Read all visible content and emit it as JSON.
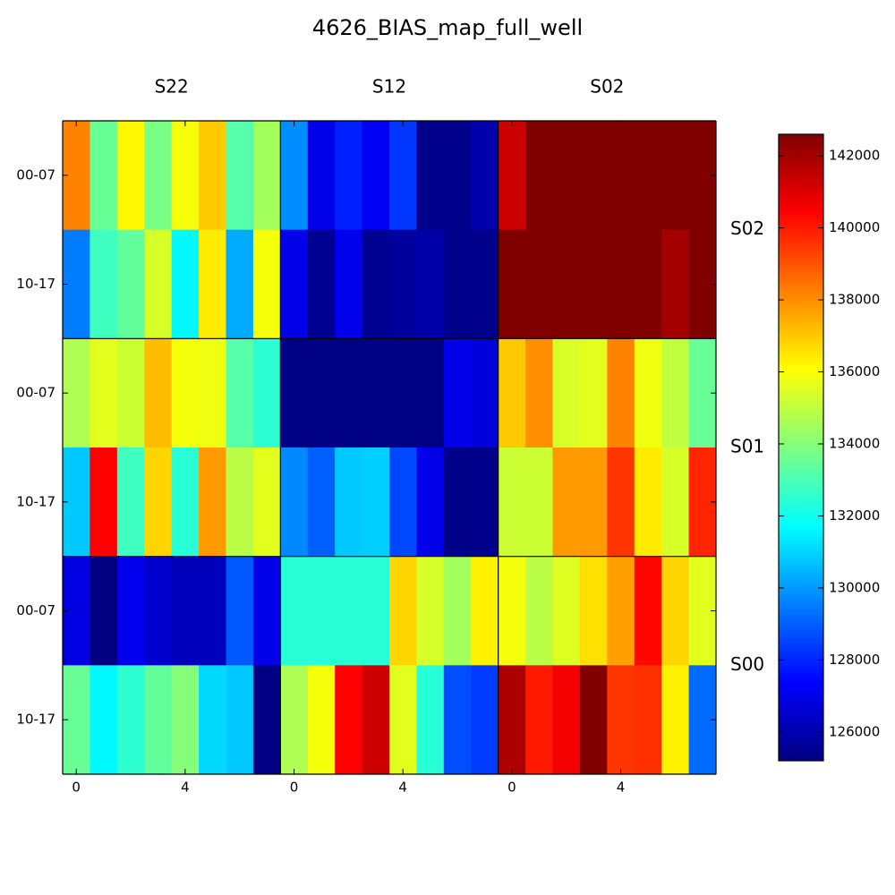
{
  "chart_data": {
    "type": "heatmap",
    "title": "4626_BIAS_map_full_well",
    "colormap": "jet",
    "column_labels": [
      "S22",
      "S12",
      "S02"
    ],
    "row_labels": [
      "S02",
      "S01",
      "S00"
    ],
    "xlim": [
      -0.5,
      7.5
    ],
    "xticks": [
      0,
      4
    ],
    "ylim": [
      -0.5,
      1.5
    ],
    "yticks": [
      {
        "value": 0,
        "label": "00-07"
      },
      {
        "value": 1,
        "label": "10-17"
      }
    ],
    "colorbar": {
      "lim": [
        125200,
        142600
      ],
      "ticks": [
        126000,
        128000,
        130000,
        132000,
        134000,
        136000,
        138000,
        140000,
        142000
      ]
    },
    "values": [
      [
        138200,
        133500,
        136200,
        133800,
        135900,
        137000,
        133200,
        134500,
        129800,
        127000,
        127900,
        127200,
        128300,
        125400,
        125400,
        126000,
        141300,
        142600,
        142600,
        142600,
        142600,
        142600,
        142600,
        142600
      ],
      [
        129500,
        132800,
        133400,
        135400,
        131600,
        136400,
        130300,
        135900,
        127000,
        125500,
        127100,
        125500,
        125700,
        125900,
        125400,
        125400,
        142600,
        142600,
        142600,
        142600,
        142600,
        142600,
        142000,
        142600
      ],
      [
        134700,
        135600,
        135200,
        137200,
        135900,
        135800,
        133200,
        132500,
        125300,
        125300,
        125300,
        125300,
        125300,
        125300,
        127000,
        126800,
        137000,
        138000,
        135400,
        135600,
        138200,
        135800,
        135000,
        133500
      ],
      [
        130800,
        140400,
        132800,
        136800,
        132400,
        137800,
        134900,
        135600,
        129700,
        129000,
        130800,
        130900,
        128600,
        127000,
        125400,
        125400,
        135200,
        135200,
        137800,
        137800,
        139500,
        136400,
        135400,
        139800
      ],
      [
        126900,
        125200,
        127100,
        126500,
        126200,
        126200,
        128900,
        127000,
        132400,
        132400,
        132400,
        132400,
        136800,
        135400,
        134500,
        136300,
        135900,
        134900,
        135500,
        136600,
        137700,
        140300,
        136800,
        135600
      ],
      [
        133500,
        131600,
        132500,
        133400,
        134000,
        131100,
        130800,
        125300,
        134700,
        135900,
        140400,
        141300,
        135600,
        132400,
        128700,
        128400,
        141800,
        140000,
        140600,
        142600,
        139500,
        139600,
        136300,
        129200
      ]
    ]
  }
}
